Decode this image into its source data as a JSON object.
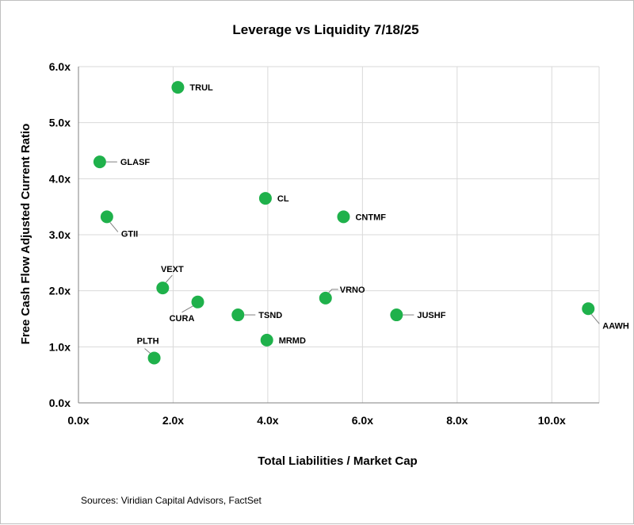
{
  "chart_data": {
    "type": "scatter",
    "title": "Leverage vs Liquidity 7/18/25",
    "xlabel": "Total Liabilities / Market Cap",
    "ylabel": "Free Cash Flow Adjusted Current Ratio",
    "xlim": [
      0,
      11
    ],
    "ylim": [
      0,
      6
    ],
    "x_ticks": [
      0,
      2,
      4,
      6,
      8,
      10
    ],
    "x_tick_labels": [
      "0.0x",
      "2.0x",
      "4.0x",
      "6.0x",
      "8.0x",
      "10.0x"
    ],
    "y_ticks": [
      0,
      1,
      2,
      3,
      4,
      5,
      6
    ],
    "y_tick_labels": [
      "0.0x",
      "1.0x",
      "2.0x",
      "3.0x",
      "4.0x",
      "5.0x",
      "6.0x"
    ],
    "grid": true,
    "marker_color": "#1fb14b",
    "points": [
      {
        "label": "TRUL",
        "x": 2.1,
        "y": 5.63,
        "label_pos": "right"
      },
      {
        "label": "GLASF",
        "x": 0.45,
        "y": 4.3,
        "label_pos": "right-leader"
      },
      {
        "label": "CL",
        "x": 3.95,
        "y": 3.65,
        "label_pos": "right"
      },
      {
        "label": "CNTMF",
        "x": 5.6,
        "y": 3.32,
        "label_pos": "right"
      },
      {
        "label": "GTII",
        "x": 0.6,
        "y": 3.32,
        "label_pos": "below-right-leader"
      },
      {
        "label": "VEXT",
        "x": 1.78,
        "y": 2.05,
        "label_pos": "above-leader"
      },
      {
        "label": "CURA",
        "x": 2.52,
        "y": 1.8,
        "label_pos": "below-left-leader"
      },
      {
        "label": "VRNO",
        "x": 5.22,
        "y": 1.87,
        "label_pos": "above-right-leader"
      },
      {
        "label": "TSND",
        "x": 3.37,
        "y": 1.57,
        "label_pos": "right-leader"
      },
      {
        "label": "JUSHF",
        "x": 6.72,
        "y": 1.57,
        "label_pos": "right-leader"
      },
      {
        "label": "AAWH",
        "x": 10.77,
        "y": 1.68,
        "label_pos": "below-right-leader"
      },
      {
        "label": "MRMD",
        "x": 3.98,
        "y": 1.12,
        "label_pos": "right"
      },
      {
        "label": "PLTH",
        "x": 1.6,
        "y": 0.8,
        "label_pos": "above-left-leader"
      }
    ],
    "source_note": "Sources: Viridian Capital Advisors, FactSet"
  }
}
